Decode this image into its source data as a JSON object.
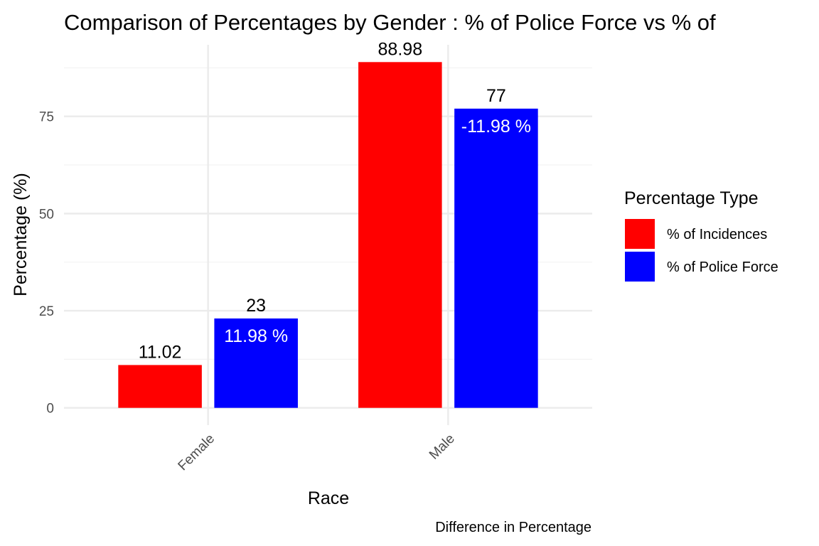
{
  "chart_data": {
    "type": "bar",
    "title": "Comparison of Percentages by Gender : % of Police Force vs % of",
    "xlabel": "Race",
    "ylabel": "Percentage (%)",
    "caption": "Difference in Percentage",
    "categories": [
      "Female",
      "Male"
    ],
    "series": [
      {
        "name": "% of Incidences",
        "color": "#ff0000",
        "values": [
          11.02,
          88.98
        ]
      },
      {
        "name": "% of Police Force",
        "color": "#0000ff",
        "values": [
          23,
          77
        ]
      }
    ],
    "value_labels": [
      [
        "11.02",
        "88.98"
      ],
      [
        "23",
        "77"
      ]
    ],
    "difference_labels": [
      "11.98 %",
      "-11.98 %"
    ],
    "ylim": [
      -4.45,
      93.43
    ],
    "yticks": [
      0,
      25,
      50,
      75
    ],
    "ytick_labels": [
      "0",
      "25",
      "50",
      "75"
    ],
    "legend": {
      "title": "Percentage Type",
      "position": "right"
    },
    "grid": true
  }
}
